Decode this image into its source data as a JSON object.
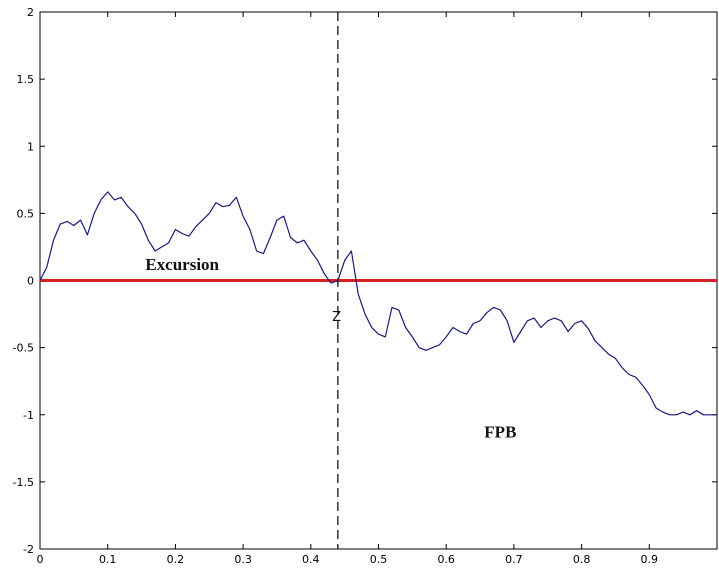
{
  "chart_data": {
    "type": "line",
    "title": "",
    "xlabel": "",
    "ylabel": "",
    "xlim": [
      0,
      1
    ],
    "ylim": [
      -2,
      2
    ],
    "xticks": [
      0,
      0.1,
      0.2,
      0.3,
      0.4,
      0.5,
      0.6,
      0.7,
      0.8,
      0.9
    ],
    "xtick_labels": [
      "0",
      "0.1",
      "0.2",
      "0.3",
      "0.4",
      "0.5",
      "0.6",
      "0.7",
      "0.8",
      "0.9"
    ],
    "yticks": [
      2,
      1.5,
      1,
      0.5,
      0,
      -0.5,
      -1,
      -1.5,
      -2
    ],
    "ytick_labels": [
      "2",
      "1.5",
      "1",
      "0.5",
      "0",
      "-0.5",
      "-1",
      "-1.5",
      "-2"
    ],
    "grid": false,
    "colors": {
      "series": "#1a1a7a",
      "baseline": "#d42020",
      "zero_marker": "#000000"
    },
    "series": [
      {
        "x": [
          0,
          0.01,
          0.02,
          0.03,
          0.04,
          0.05,
          0.06,
          0.07,
          0.08,
          0.09,
          0.1,
          0.11,
          0.12,
          0.13,
          0.14,
          0.15,
          0.16,
          0.17,
          0.18,
          0.19,
          0.2,
          0.21,
          0.22,
          0.23,
          0.24,
          0.25,
          0.26,
          0.27,
          0.28,
          0.29,
          0.3,
          0.31,
          0.32,
          0.33,
          0.34,
          0.35,
          0.36,
          0.37,
          0.38,
          0.39,
          0.4,
          0.41,
          0.42,
          0.43,
          0.44,
          0.45,
          0.46,
          0.47,
          0.48,
          0.49,
          0.5,
          0.51,
          0.52,
          0.53,
          0.54,
          0.55,
          0.56,
          0.57,
          0.58,
          0.59,
          0.6,
          0.61,
          0.62,
          0.63,
          0.64,
          0.65,
          0.66,
          0.67,
          0.68,
          0.69,
          0.7,
          0.71,
          0.72,
          0.73,
          0.74,
          0.75,
          0.76,
          0.77,
          0.78,
          0.79,
          0.8,
          0.81,
          0.82,
          0.83,
          0.84,
          0.85,
          0.86,
          0.87,
          0.88,
          0.89,
          0.9,
          0.91,
          0.92,
          0.93,
          0.94,
          0.95,
          0.96,
          0.97,
          0.98,
          0.99,
          1.0
        ],
        "y": [
          0,
          0.1,
          0.3,
          0.42,
          0.44,
          0.41,
          0.45,
          0.34,
          0.5,
          0.6,
          0.66,
          0.6,
          0.62,
          0.55,
          0.5,
          0.42,
          0.3,
          0.22,
          0.25,
          0.28,
          0.38,
          0.35,
          0.33,
          0.4,
          0.45,
          0.5,
          0.58,
          0.55,
          0.56,
          0.62,
          0.48,
          0.38,
          0.22,
          0.2,
          0.32,
          0.45,
          0.48,
          0.32,
          0.28,
          0.3,
          0.22,
          0.15,
          0.05,
          -0.02,
          0,
          0.15,
          0.22,
          -0.1,
          -0.25,
          -0.35,
          -0.4,
          -0.42,
          -0.2,
          -0.22,
          -0.35,
          -0.42,
          -0.5,
          -0.52,
          -0.5,
          -0.48,
          -0.42,
          -0.35,
          -0.38,
          -0.4,
          -0.32,
          -0.3,
          -0.24,
          -0.2,
          -0.22,
          -0.3,
          -0.46,
          -0.38,
          -0.3,
          -0.28,
          -0.35,
          -0.3,
          -0.28,
          -0.3,
          -0.38,
          -0.32,
          -0.3,
          -0.36,
          -0.45,
          -0.5,
          -0.55,
          -0.58,
          -0.65,
          -0.7,
          -0.72,
          -0.78,
          -0.85,
          -0.95,
          -0.98,
          -1.0,
          -1.0,
          -0.98,
          -1.0,
          -0.97,
          -1.0,
          -1.0,
          -1.0
        ]
      }
    ],
    "reference_lines": [
      {
        "orientation": "horizontal",
        "value": 0,
        "style": "solid",
        "color": "#d42020"
      },
      {
        "orientation": "vertical",
        "value": 0.44,
        "style": "dashed",
        "color": "#000000"
      }
    ],
    "annotations": [
      {
        "text": "Excursion",
        "x": 0.21,
        "y": 0.08
      },
      {
        "text": "Z",
        "x": 0.438,
        "y": -0.3
      },
      {
        "text": "FPB",
        "x": 0.68,
        "y": -1.17
      }
    ]
  }
}
